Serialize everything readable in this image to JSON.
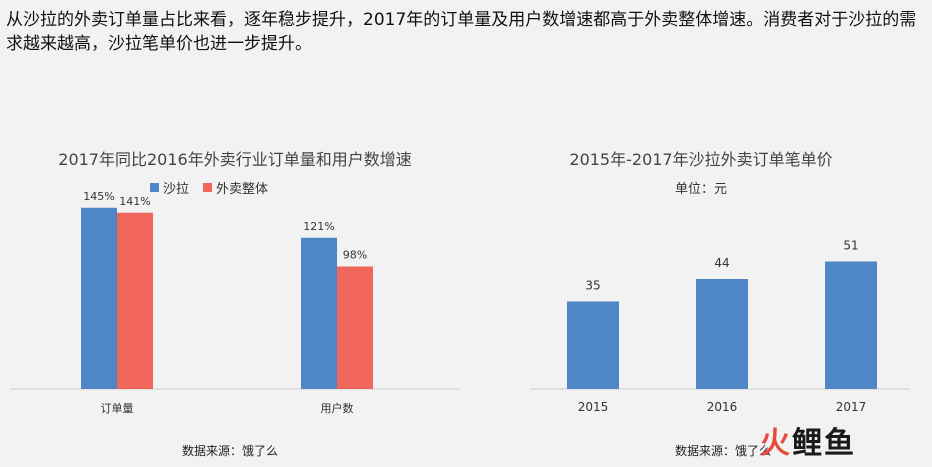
{
  "intro": "从沙拉的外卖订单量占比来看，逐年稳步提升，2017年的订单量及用户数增速都高于外卖整体增速。消费者对于沙拉的需求越来越高，沙拉笔单价也进一步提升。",
  "colors": {
    "salad": "#4e86c6",
    "overall": "#f0665b",
    "bar": "#4e86c6"
  },
  "chart_data": [
    {
      "type": "bar",
      "title": "2017年同比2016年外卖行业订单量和用户数增速",
      "categories": [
        "订单量",
        "用户数"
      ],
      "series": [
        {
          "name": "沙拉",
          "values": [
            145,
            121
          ],
          "labels": [
            "145%",
            "121%"
          ]
        },
        {
          "name": "外卖整体",
          "values": [
            141,
            98
          ],
          "labels": [
            "141%",
            "98%"
          ]
        }
      ],
      "ylim": [
        0,
        160
      ],
      "legend": "top",
      "grid": false
    },
    {
      "type": "bar",
      "title": "2015年-2017年沙拉外卖订单笔单价",
      "subtitle": "单位：元",
      "categories": [
        "2015",
        "2016",
        "2017"
      ],
      "values": [
        35,
        44,
        51
      ],
      "ylim": [
        0,
        56
      ],
      "grid": false
    }
  ],
  "source_left": "数据来源：饿了么",
  "source_right": "数据来源：饿了么",
  "logo": {
    "part1": "火",
    "part2": "鲤鱼"
  }
}
